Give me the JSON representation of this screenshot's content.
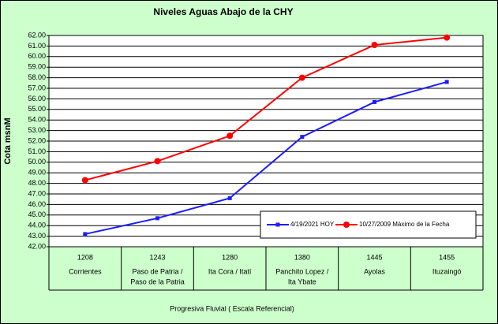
{
  "chart_data": {
    "type": "line",
    "title": "Niveles Aguas Abajo de la CHY",
    "y_label": "Cota msnM",
    "x_label": "Progresiva Fluvial ( Escala Referencial)",
    "categories": [
      "1208",
      "1243",
      "1280",
      "1380",
      "1445",
      "1455"
    ],
    "category_names": [
      [
        "Corrientes"
      ],
      [
        "Paso de Patria /",
        "Paso de la Patria"
      ],
      [
        "Ita Cora / Itatí"
      ],
      [
        "Panchito Lopez /",
        "Ita Ybate"
      ],
      [
        "Ayolas"
      ],
      [
        "Ituzaingó"
      ]
    ],
    "series": [
      {
        "name": "4/19/2021 HOY",
        "color": "#1c1cff",
        "marker": "square",
        "values": [
          43.2,
          44.7,
          46.6,
          52.4,
          55.7,
          57.6
        ]
      },
      {
        "name": "10/27/2009 Máximo de la Fecha",
        "color": "#ff0000",
        "marker": "circle",
        "values": [
          48.3,
          50.1,
          52.5,
          58.0,
          61.1,
          61.8
        ]
      }
    ],
    "ylim": [
      42,
      62
    ],
    "yticks": [
      {
        "value": 42,
        "label": "42.00"
      },
      {
        "value": 43,
        "label": "43.00"
      },
      {
        "value": 44,
        "label": "44.00"
      },
      {
        "value": 45,
        "label": "45.00"
      },
      {
        "value": 46,
        "label": "46.00"
      },
      {
        "value": 47,
        "label": "47.00"
      },
      {
        "value": 48,
        "label": "48.00"
      },
      {
        "value": 49,
        "label": "49.00"
      },
      {
        "value": 50,
        "label": "50.00"
      },
      {
        "value": 51,
        "label": "51.00"
      },
      {
        "value": 52,
        "label": "52.00"
      },
      {
        "value": 53,
        "label": "53.00"
      },
      {
        "value": 54,
        "label": "54.00"
      },
      {
        "value": 55,
        "label": "55.00"
      },
      {
        "value": 56,
        "label": "56.00"
      },
      {
        "value": 57,
        "label": "57.00"
      },
      {
        "value": 58,
        "label": "58.00"
      },
      {
        "value": 59,
        "label": "59.00"
      },
      {
        "value": 60,
        "label": "60.00"
      },
      {
        "value": 61,
        "label": "61.00"
      },
      {
        "value": 62,
        "label": "62.00"
      }
    ],
    "grid": true,
    "legend": "lower-right",
    "background": "#ccffcc"
  }
}
